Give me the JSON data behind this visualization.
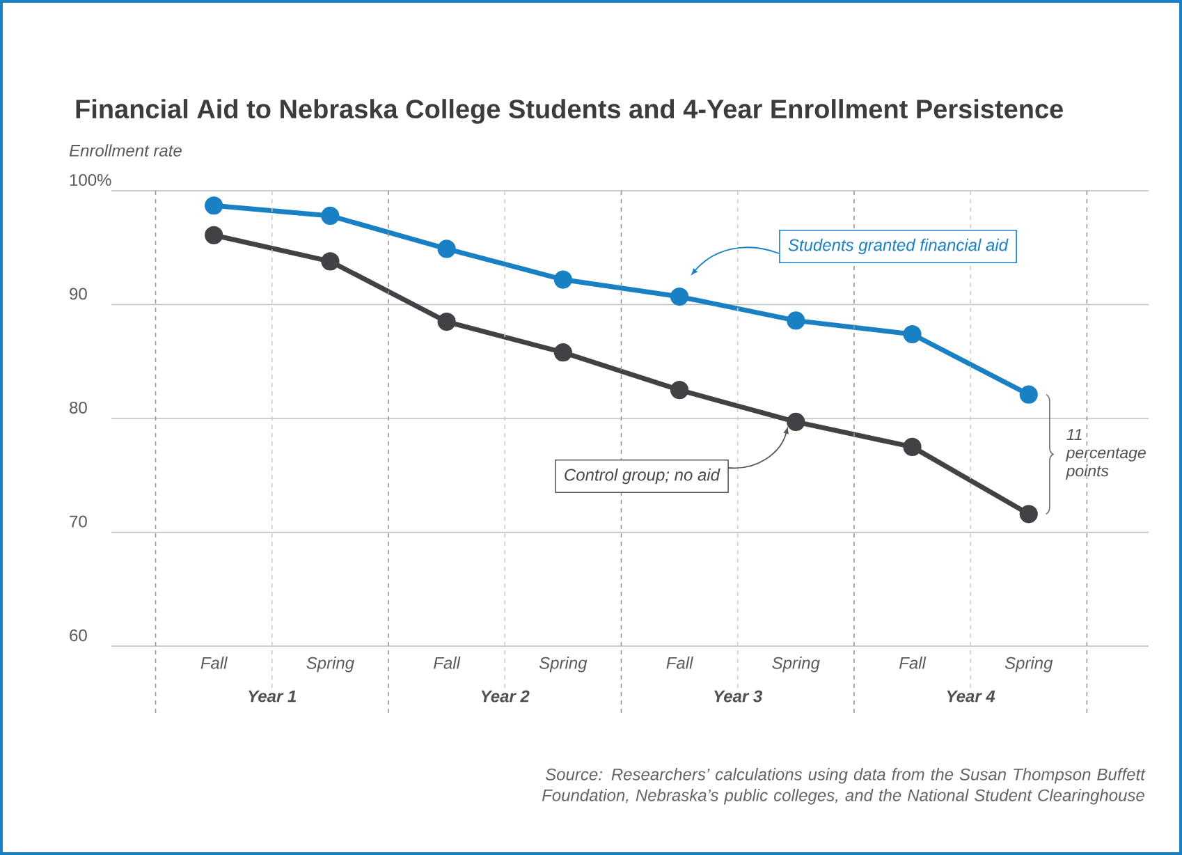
{
  "chart_data": {
    "type": "line",
    "title": "Financial Aid to Nebraska College Students and 4-Year Enrollment Persistence",
    "ylabel": "Enrollment rate",
    "categories": [
      "Fall",
      "Spring",
      "Fall",
      "Spring",
      "Fall",
      "Spring",
      "Fall",
      "Spring"
    ],
    "series": [
      {
        "name": "Students granted financial aid",
        "color": "#1a80c4",
        "values": [
          98.7,
          97.8,
          94.9,
          92.2,
          90.7,
          88.6,
          87.4,
          82.1
        ]
      },
      {
        "name": "Control group; no aid",
        "color": "#414245",
        "values": [
          96.1,
          93.8,
          88.5,
          85.8,
          82.5,
          79.7,
          77.5,
          71.6
        ]
      }
    ],
    "ylim": [
      60,
      100
    ],
    "yticks": [
      60,
      70,
      80,
      90,
      {
        "value": 100,
        "label": "100%"
      }
    ],
    "grid": "y",
    "legend": false,
    "marker": "circle",
    "line_style": "solid",
    "annotations": [
      "Year 1",
      "Year 2",
      "Year 3",
      "Year 4",
      "11 percentage points",
      "Source: Researchers’ calculations using data from the Susan Thompson Buffett Foundation, Nebraska’s public colleges, and the National Student Clearinghouse"
    ]
  }
}
